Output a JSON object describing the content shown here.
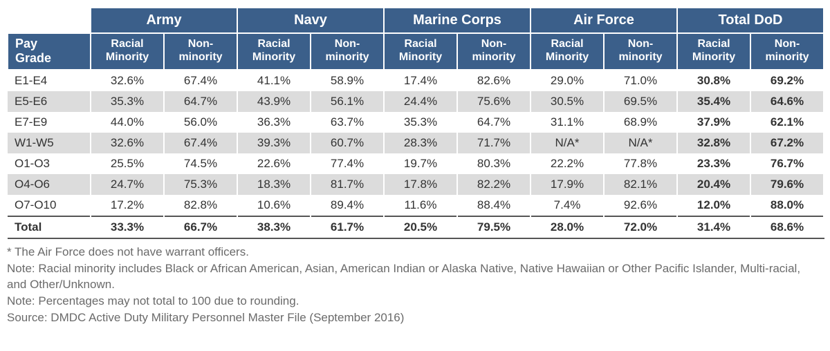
{
  "branches": [
    "Army",
    "Navy",
    "Marine Corps",
    "Air Force",
    "Total DoD"
  ],
  "sub_headers": {
    "paygrade": "Pay\nGrade",
    "minority": "Racial\nMinority",
    "nonminority": "Non-\nminority"
  },
  "rows": [
    {
      "label": "E1-E4",
      "alt": false,
      "cells": [
        "32.6%",
        "67.4%",
        "41.1%",
        "58.9%",
        "17.4%",
        "82.6%",
        "29.0%",
        "71.0%",
        "30.8%",
        "69.2%"
      ]
    },
    {
      "label": "E5-E6",
      "alt": true,
      "cells": [
        "35.3%",
        "64.7%",
        "43.9%",
        "56.1%",
        "24.4%",
        "75.6%",
        "30.5%",
        "69.5%",
        "35.4%",
        "64.6%"
      ]
    },
    {
      "label": "E7-E9",
      "alt": false,
      "cells": [
        "44.0%",
        "56.0%",
        "36.3%",
        "63.7%",
        "35.3%",
        "64.7%",
        "31.1%",
        "68.9%",
        "37.9%",
        "62.1%"
      ]
    },
    {
      "label": "W1-W5",
      "alt": true,
      "cells": [
        "32.6%",
        "67.4%",
        "39.3%",
        "60.7%",
        "28.3%",
        "71.7%",
        "N/A*",
        "N/A*",
        "32.8%",
        "67.2%"
      ]
    },
    {
      "label": "O1-O3",
      "alt": false,
      "cells": [
        "25.5%",
        "74.5%",
        "22.6%",
        "77.4%",
        "19.7%",
        "80.3%",
        "22.2%",
        "77.8%",
        "23.3%",
        "76.7%"
      ]
    },
    {
      "label": "O4-O6",
      "alt": true,
      "cells": [
        "24.7%",
        "75.3%",
        "18.3%",
        "81.7%",
        "17.8%",
        "82.2%",
        "17.9%",
        "82.1%",
        "20.4%",
        "79.6%"
      ]
    },
    {
      "label": "O7-O10",
      "alt": false,
      "cells": [
        "17.2%",
        "82.8%",
        "10.6%",
        "89.4%",
        "11.6%",
        "88.4%",
        "7.4%",
        "92.6%",
        "12.0%",
        "88.0%"
      ]
    }
  ],
  "total_row": {
    "label": "Total",
    "cells": [
      "33.3%",
      "66.7%",
      "38.3%",
      "61.7%",
      "20.5%",
      "79.5%",
      "28.0%",
      "72.0%",
      "31.4%",
      "68.6%"
    ]
  },
  "notes": [
    "* The Air Force does not have warrant officers.",
    "Note: Racial minority includes Black or African American, Asian, American Indian or Alaska Native, Native Hawaiian or Other Pacific Islander, Multi-racial, and Other/Unknown.",
    "Note: Percentages may not total to 100 due to rounding.",
    "Source: DMDC Active Duty Military Personnel Master File (September 2016)"
  ],
  "style": {
    "header_bg": "#3b5f8a",
    "header_fg": "#ffffff",
    "alt_row_bg": "#dcdcdc",
    "text_color": "#333333",
    "note_color": "#6a6a6a",
    "branch_fontsize": 20,
    "sub_fontsize": 16,
    "body_fontsize": 17,
    "bold_last_two_cols": true
  }
}
